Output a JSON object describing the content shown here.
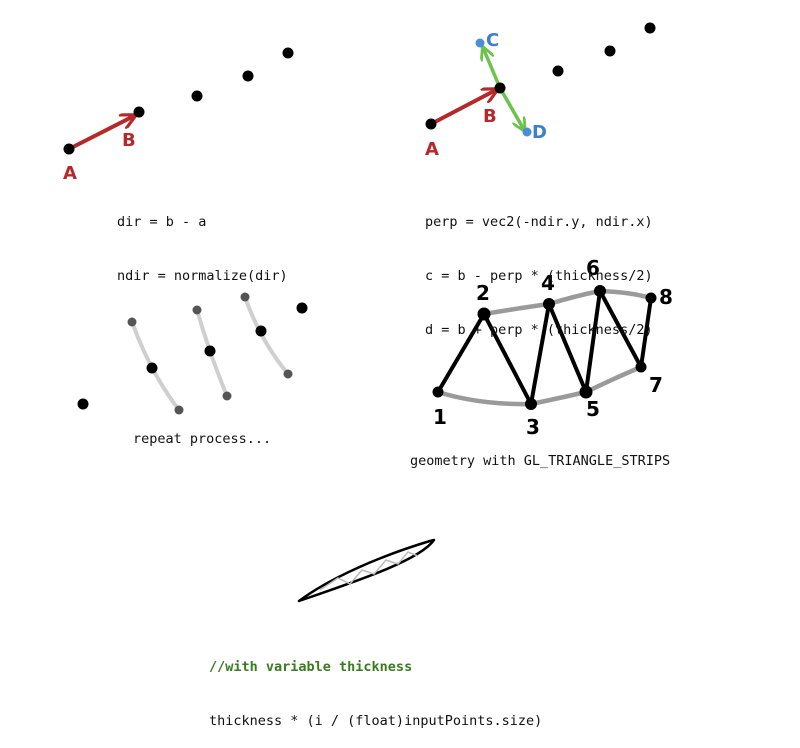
{
  "panel1": {
    "labels": {
      "a": "A",
      "b": "B"
    },
    "code": [
      "dir = b - a",
      "ndir = normalize(dir)"
    ]
  },
  "panel2": {
    "labels": {
      "a": "A",
      "b": "B",
      "c": "C",
      "d": "D"
    },
    "code": [
      "perp = vec2(-ndir.y, ndir.x)",
      "c = b - perp * (thickness/2)",
      "d = b + perp * (thickness/2)"
    ]
  },
  "panel3": {
    "caption": "repeat process..."
  },
  "panel4": {
    "vertex_labels": [
      "1",
      "2",
      "3",
      "4",
      "5",
      "6",
      "7",
      "8"
    ],
    "caption": "geometry with GL_TRIANGLE_STRIPS"
  },
  "panel5": {
    "comment": "//with variable thickness",
    "code": "thickness * (i / (float)inputPoints.size)"
  },
  "colors": {
    "arrow_red": "#b5292b",
    "arrow_green": "#6cc24a",
    "point_blue": "#4a8fd6",
    "label_blue": "#3d7fcf",
    "comment_green": "#3b7a1f",
    "outline_gray": "#9a9a9a",
    "point_black": "#000000"
  }
}
